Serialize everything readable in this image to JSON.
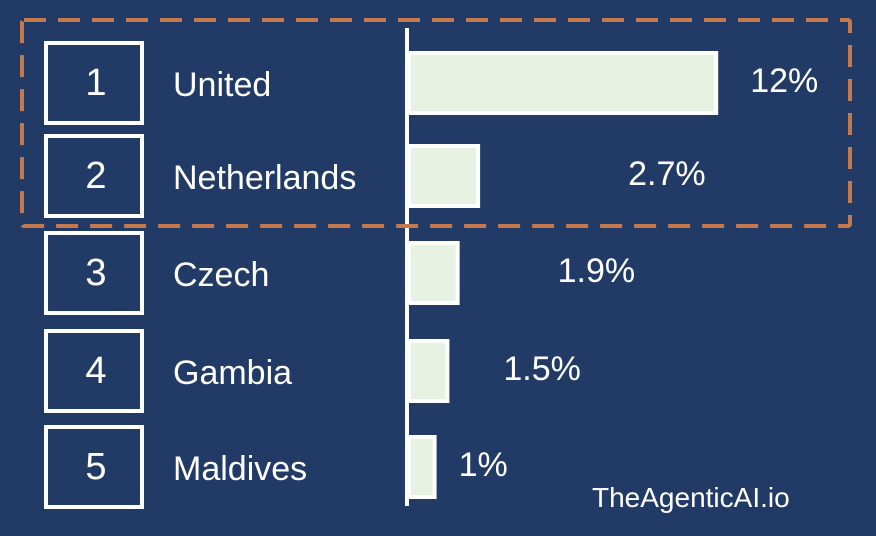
{
  "chart_data": {
    "type": "bar",
    "orientation": "horizontal",
    "categories": [
      "United",
      "Netherlands",
      "Czech",
      "Gambia",
      "Maldives"
    ],
    "ranks": [
      "1",
      "2",
      "3",
      "4",
      "5"
    ],
    "values": [
      12,
      2.7,
      1.9,
      1.5,
      1
    ],
    "value_labels": [
      "12%",
      "2.7%",
      "1.9%",
      "1.5%",
      "1%"
    ],
    "highlighted_ranks": [
      1,
      2
    ],
    "title": "",
    "xlabel": "",
    "ylabel": ""
  },
  "watermark": "TheAgenticAI.io",
  "colors": {
    "background": "#223b66",
    "bar_fill": "#e8f2e2",
    "highlight": "#c47a4c",
    "text": "#ffffff"
  }
}
